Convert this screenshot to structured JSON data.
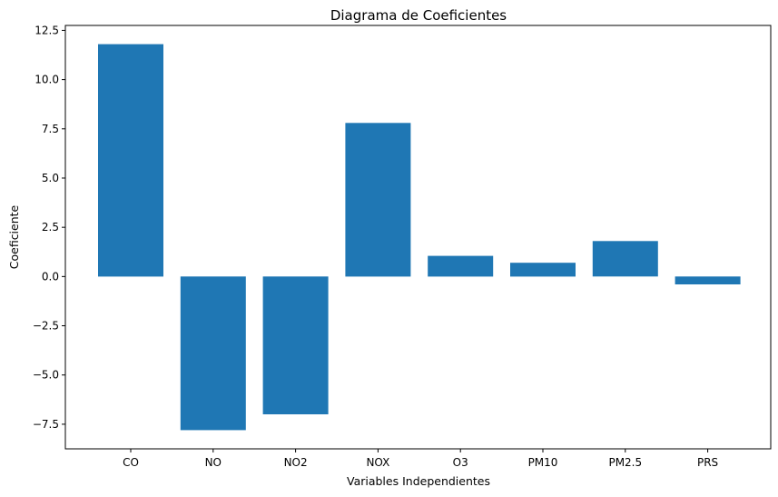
{
  "chart_data": {
    "type": "bar",
    "title": "Diagrama de Coeficientes",
    "xlabel": "Variables Independientes",
    "ylabel": "Coeficiente",
    "categories": [
      "CO",
      "NO",
      "NO2",
      "NOX",
      "O3",
      "PM10",
      "PM2.5",
      "PRS"
    ],
    "values": [
      11.8,
      -7.8,
      -7.0,
      7.8,
      1.05,
      0.7,
      1.8,
      -0.4
    ],
    "ylim": [
      -8.75,
      12.75
    ],
    "yticks": [
      -7.5,
      -5.0,
      -2.5,
      0.0,
      2.5,
      5.0,
      7.5,
      10.0,
      12.5
    ],
    "ytick_labels": [
      "−7.5",
      "−5.0",
      "−2.5",
      "0.0",
      "2.5",
      "5.0",
      "7.5",
      "10.0",
      "12.5"
    ],
    "bar_color": "#1f77b4",
    "grid": false,
    "legend": "none"
  }
}
